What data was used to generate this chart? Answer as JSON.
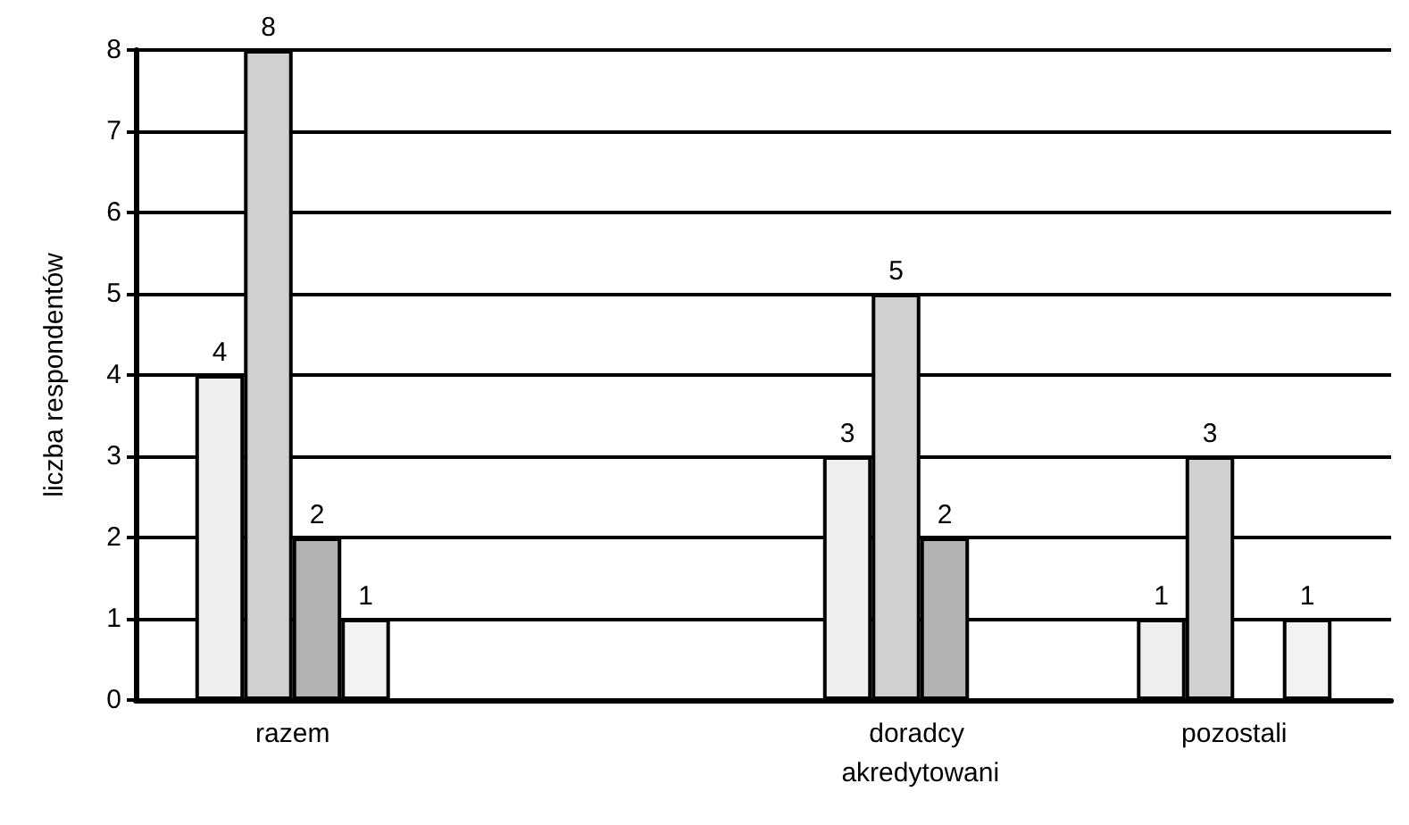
{
  "chart_data": {
    "type": "bar",
    "ylabel": "liczba respondentów",
    "categories": [
      "razem",
      null,
      "doradcy akredytowani",
      "pozostali"
    ],
    "series": [
      {
        "color": "#eeeeee",
        "values": [
          4,
          null,
          3,
          1
        ]
      },
      {
        "color": "#d0d0d0",
        "values": [
          8,
          null,
          5,
          3
        ]
      },
      {
        "color": "#b2b2b2",
        "values": [
          2,
          null,
          2,
          null
        ]
      },
      {
        "color": "#f2f2f2",
        "values": [
          1,
          null,
          null,
          1
        ]
      }
    ],
    "ylim": [
      0,
      8
    ],
    "yticks": [
      0,
      1,
      2,
      3,
      4,
      5,
      6,
      7,
      8
    ],
    "grid": "y",
    "data_labels": true
  }
}
